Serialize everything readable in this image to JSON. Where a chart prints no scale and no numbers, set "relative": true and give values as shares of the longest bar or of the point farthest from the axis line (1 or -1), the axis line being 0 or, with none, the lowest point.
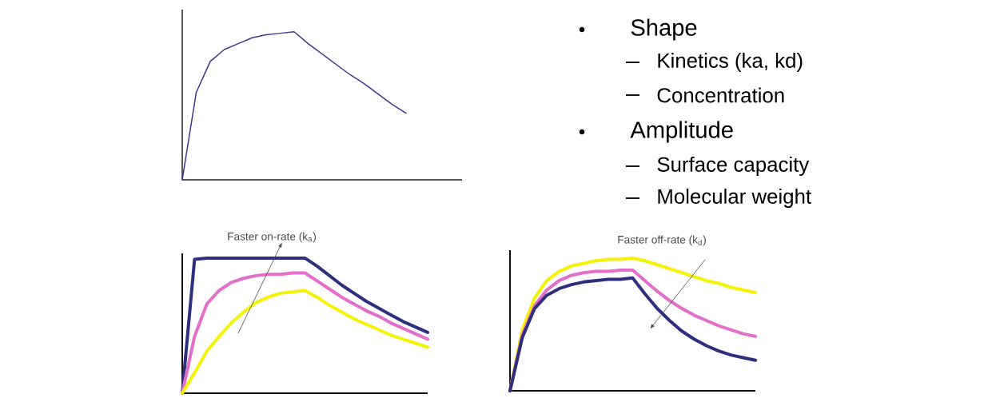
{
  "chart_data": [
    {
      "type": "line",
      "relative": true,
      "categories": [
        null,
        null,
        null,
        null,
        null,
        null,
        null,
        null,
        null,
        null,
        null,
        null,
        null,
        null,
        null,
        null,
        null,
        null,
        null,
        null,
        null
      ],
      "color": "#3a3a8c",
      "values": [
        0,
        0.59,
        0.8,
        0.88,
        0.92,
        0.96,
        0.98,
        0.99,
        1.0,
        0.92,
        0.85,
        0.78,
        0.71,
        0.65,
        0.58,
        0.51,
        0.45,
        null,
        null,
        null,
        null
      ]
    },
    {
      "type": "other",
      "title": "Shape",
      "annotations": [
        "Kinetics (ka, kd)",
        "Concentration"
      ]
    },
    {
      "type": "other",
      "title": "Amplitude",
      "annotations": [
        "Surface capacity",
        "Molecular weight"
      ]
    },
    {
      "type": "line",
      "relative": true,
      "categories": [
        null,
        null,
        null,
        null,
        null,
        null,
        null,
        null,
        null,
        null,
        null,
        null,
        null,
        null,
        null,
        null,
        null,
        null,
        null,
        null,
        null
      ],
      "annotations": [
        "Faster on-rate (k$_{a}$)"
      ],
      "series": [
        {
          "color": "#2e2f7f",
          "values": [
            0,
            0.99,
            1.0,
            1.0,
            1.0,
            1.0,
            1.0,
            1.0,
            1.0,
            1.0,
            1.0,
            0.94,
            0.87,
            0.8,
            0.74,
            0.68,
            0.63,
            0.58,
            0.53,
            0.49,
            0.45
          ]
        },
        {
          "color": "#e36fc9",
          "values": [
            0,
            0.42,
            0.66,
            0.76,
            0.82,
            0.85,
            0.87,
            0.88,
            0.88,
            0.89,
            0.89,
            0.83,
            0.77,
            0.71,
            0.66,
            0.61,
            0.57,
            0.52,
            0.48,
            0.44,
            0.4
          ]
        },
        {
          "color": "#f5f20a",
          "values": [
            0,
            0.15,
            0.31,
            0.42,
            0.52,
            0.6,
            0.67,
            0.71,
            0.74,
            0.75,
            0.76,
            0.71,
            0.65,
            0.6,
            0.55,
            0.51,
            0.47,
            0.43,
            0.4,
            0.37,
            0.34
          ]
        }
      ]
    },
    {
      "type": "line",
      "relative": true,
      "categories": [
        null,
        null,
        null,
        null,
        null,
        null,
        null,
        null,
        null,
        null,
        null,
        null,
        null,
        null,
        null,
        null,
        null,
        null,
        null,
        null,
        null
      ],
      "annotations": [
        "Faster off-rate (k$_{d}$)"
      ],
      "series": [
        {
          "color": "#f5f20a",
          "values": [
            0,
            0.46,
            0.7,
            0.83,
            0.9,
            0.94,
            0.96,
            0.98,
            0.99,
            0.99,
            1.0,
            0.98,
            0.95,
            0.92,
            0.89,
            0.86,
            0.83,
            0.81,
            0.78,
            0.76,
            0.74
          ]
        },
        {
          "color": "#e36fc9",
          "values": [
            0,
            0.42,
            0.64,
            0.76,
            0.83,
            0.87,
            0.89,
            0.9,
            0.9,
            0.91,
            0.91,
            0.83,
            0.75,
            0.68,
            0.62,
            0.57,
            0.53,
            0.49,
            0.46,
            0.43,
            0.41
          ]
        },
        {
          "color": "#2e2f7f",
          "values": [
            0,
            0.4,
            0.62,
            0.72,
            0.77,
            0.8,
            0.82,
            0.83,
            0.84,
            0.84,
            0.85,
            0.73,
            0.62,
            0.53,
            0.45,
            0.39,
            0.34,
            0.3,
            0.27,
            0.25,
            0.23
          ]
        }
      ]
    }
  ]
}
